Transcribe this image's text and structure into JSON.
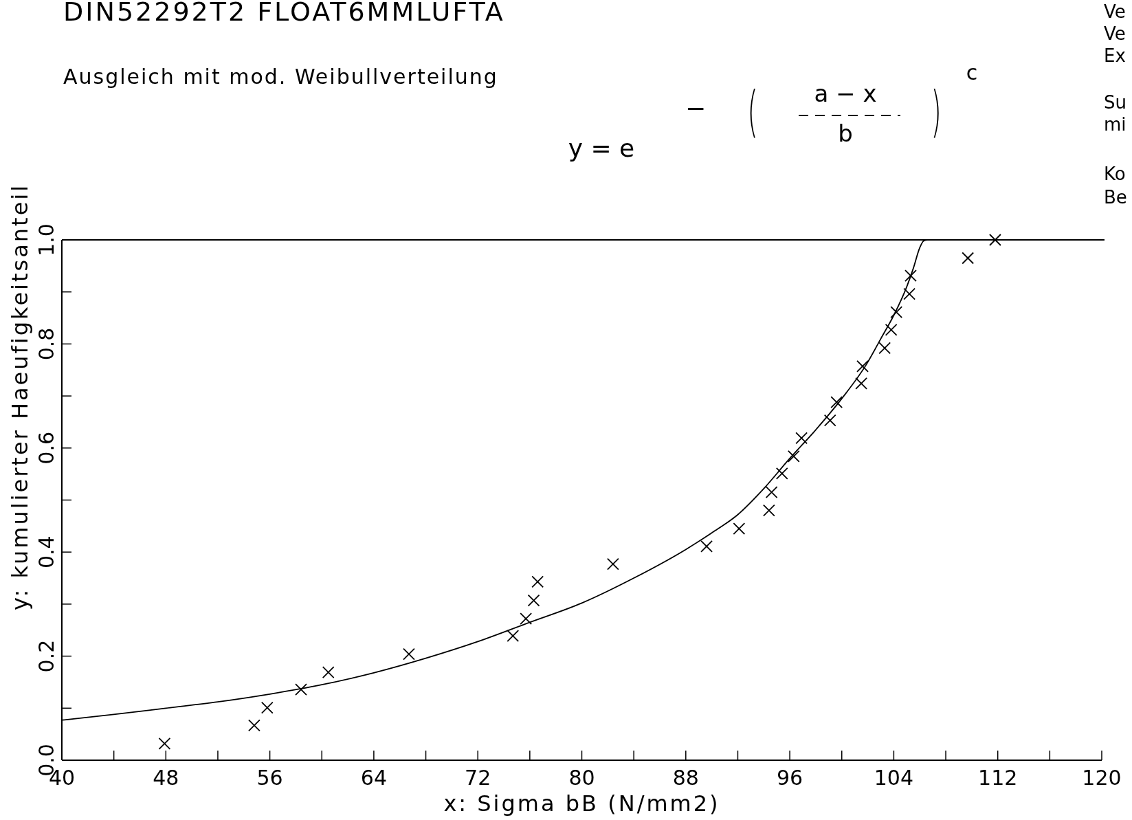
{
  "chart_data": {
    "type": "scatter",
    "title": "DIN52292T2  FLOAT6MMLUFTA",
    "subtitle": "Ausgleich mit mod. Weibullverteilung",
    "xlabel": "x:  Sigma bB (N/mm2)",
    "ylabel": "y:  kumulierter Haeufigkeitsanteil",
    "annotations": [
      "y  =  e",
      "−",
      "(",
      "a  −  x",
      "b",
      ")",
      "c",
      "Ve",
      "Ve",
      "Ex",
      "Su",
      "mi",
      "Ko",
      "Be"
    ],
    "xlim": [
      40,
      120
    ],
    "xticks": [
      40,
      {
        "value": 44,
        "label": null
      },
      48,
      {
        "value": 52,
        "label": null
      },
      56,
      {
        "value": 60,
        "label": null
      },
      64,
      {
        "value": 68,
        "label": null
      },
      72,
      {
        "value": 76,
        "label": null
      },
      80,
      {
        "value": 84,
        "label": null
      },
      88,
      {
        "value": 92,
        "label": null
      },
      96,
      {
        "value": 100,
        "label": null
      },
      104,
      {
        "value": 108,
        "label": null
      },
      112,
      {
        "value": 116,
        "label": null
      },
      120
    ],
    "ylim": [
      0,
      1
    ],
    "yticks": [
      {
        "value": 0,
        "label": "0.0"
      },
      {
        "value": 0.1,
        "label": null
      },
      {
        "value": 0.2,
        "label": "0.2"
      },
      {
        "value": 0.3,
        "label": null
      },
      {
        "value": 0.4,
        "label": "0.4"
      },
      {
        "value": 0.5,
        "label": null
      },
      {
        "value": 0.6,
        "label": "0.6"
      },
      {
        "value": 0.7,
        "label": null
      },
      {
        "value": 0.8,
        "label": "0.8"
      },
      {
        "value": 0.9,
        "label": null
      },
      {
        "value": 1,
        "label": "1.0"
      }
    ],
    "ref_lines": [
      {
        "axis": "y",
        "value": 1,
        "color": "#000000"
      }
    ],
    "grid": false,
    "series": [
      {
        "marker": "cross",
        "color": "#000000",
        "x": [
          47.9,
          54.8,
          55.8,
          58.4,
          60.5,
          66.7,
          74.7,
          75.7,
          76.3,
          76.6,
          82.4,
          89.6,
          92.1,
          94.4,
          94.6,
          95.4,
          96.3,
          96.9,
          99.1,
          99.6,
          101.5,
          101.6,
          103.3,
          103.8,
          104.2,
          105.2,
          105.3,
          109.7,
          111.8
        ],
        "values": [
          0.032,
          0.067,
          0.101,
          0.136,
          0.169,
          0.204,
          0.239,
          0.272,
          0.307,
          0.343,
          0.377,
          0.411,
          0.445,
          0.48,
          0.515,
          0.551,
          0.584,
          0.619,
          0.653,
          0.688,
          0.724,
          0.757,
          0.792,
          0.827,
          0.861,
          0.896,
          0.931,
          0.965,
          1.0
        ]
      },
      {
        "type": "line",
        "color": "#000000",
        "x": [
          40,
          44,
          48,
          52,
          56,
          60,
          64,
          68,
          72,
          76,
          80,
          84,
          88,
          90,
          92,
          94,
          96,
          98,
          100,
          102,
          103,
          104,
          105,
          105.5,
          106,
          106.3,
          106.6,
          107
        ],
        "values": [
          0.077,
          0.088,
          0.1,
          0.112,
          0.127,
          0.145,
          0.168,
          0.196,
          0.228,
          0.265,
          0.302,
          0.35,
          0.405,
          0.437,
          0.472,
          0.522,
          0.58,
          0.635,
          0.695,
          0.765,
          0.81,
          0.855,
          0.91,
          0.945,
          0.985,
          0.998,
          1.0,
          1.0
        ]
      }
    ]
  }
}
